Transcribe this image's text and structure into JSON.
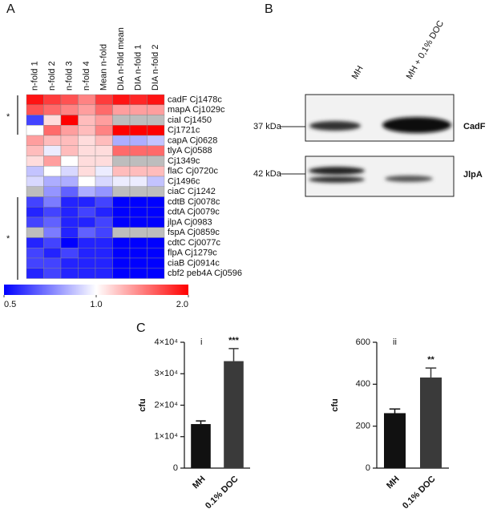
{
  "panel_labels": [
    "A",
    "B",
    "C"
  ],
  "blot": {
    "lanes": [
      "MH",
      "MH + 0,1% DOC"
    ],
    "markers": [
      "37 kDa",
      "42 kDa"
    ],
    "proteins": [
      "CadF",
      "JlpA"
    ]
  },
  "chart_data": [
    {
      "type": "heatmap",
      "columns": [
        "n-fold 1",
        "n-fold 2",
        "n-fold 3",
        "n-fold 4",
        "Mean n-fold",
        "DIA n-fold mean",
        "DIA n-fold 1",
        "DIA n-fold 2"
      ],
      "rows": [
        "cadF Cj1478c",
        "mapA Cj1029c",
        "ciaI Cj1450",
        "Cj1721c",
        "capA Cj0628",
        "tlyA Cj0588",
        "Cj1349c",
        "flaC Cj0720c",
        "Cj1496c",
        "ciaC Cj1242",
        "cdtB Cj0078c",
        "cdtA Cj0079c",
        "jlpA Cj0983",
        "fspA Cj0859c",
        "cdtC Cj0077c",
        "flpA Cj1279c",
        "ciaB Cj0914c",
        "cbf2 peb4A Cj0596"
      ],
      "values": [
        [
          1.9,
          1.7,
          1.6,
          1.4,
          1.7,
          1.9,
          1.8,
          1.9
        ],
        [
          1.6,
          1.5,
          1.4,
          1.3,
          1.5,
          1.3,
          1.3,
          1.3
        ],
        [
          0.6,
          1.1,
          2.0,
          1.2,
          1.3,
          null,
          null,
          null
        ],
        [
          1.0,
          1.5,
          1.3,
          1.2,
          1.4,
          2.0,
          2.0,
          2.0
        ],
        [
          1.3,
          1.2,
          1.2,
          1.1,
          1.2,
          0.8,
          0.8,
          0.85
        ],
        [
          1.2,
          0.95,
          1.2,
          1.1,
          1.1,
          1.5,
          1.5,
          1.5
        ],
        [
          1.1,
          1.3,
          1.0,
          1.1,
          1.1,
          null,
          null,
          null
        ],
        [
          0.85,
          1.0,
          0.9,
          1.1,
          0.95,
          1.2,
          1.2,
          1.2
        ],
        [
          0.9,
          0.8,
          0.8,
          1.0,
          0.9,
          0.95,
          0.95,
          0.85
        ],
        [
          null,
          0.75,
          0.65,
          0.8,
          0.75,
          null,
          null,
          null
        ],
        [
          0.6,
          0.7,
          0.55,
          0.55,
          0.6,
          0.5,
          0.5,
          0.5
        ],
        [
          0.55,
          0.6,
          0.55,
          0.6,
          0.55,
          0.5,
          0.5,
          0.5
        ],
        [
          0.6,
          0.65,
          0.55,
          0.55,
          0.6,
          0.5,
          0.5,
          0.5
        ],
        [
          null,
          0.7,
          0.55,
          0.65,
          0.6,
          null,
          null,
          null
        ],
        [
          0.55,
          0.6,
          0.5,
          0.55,
          0.55,
          0.5,
          0.5,
          0.5
        ],
        [
          0.6,
          0.55,
          0.6,
          0.55,
          0.55,
          0.5,
          0.5,
          0.5
        ],
        [
          0.6,
          0.6,
          0.55,
          0.55,
          0.55,
          0.5,
          0.5,
          0.5
        ],
        [
          0.55,
          0.6,
          0.55,
          0.55,
          0.55,
          0.5,
          0.5,
          0.5
        ]
      ],
      "clim": [
        0.5,
        2
      ],
      "log_scale": true,
      "colors": [
        "#0000ff",
        "#ffffff",
        "#ff0000"
      ],
      "missing_color": "#bdbdbd",
      "colorbar_ticks": [
        0.5,
        {
          "value": 1,
          "label": "1.0"
        },
        {
          "value": 2,
          "label": "2.0"
        }
      ],
      "annotations": [
        "*",
        "*"
      ]
    },
    {
      "type": "bar",
      "subtitle": "i",
      "y_label": "cfu",
      "categories": [
        "MH",
        "0.1% DOC"
      ],
      "values": [
        14000,
        34000
      ],
      "errors": [
        1000,
        4000
      ],
      "colors": [
        "#111111",
        "#3a3a3a"
      ],
      "significance": [
        null,
        "***"
      ],
      "ylim": [
        0,
        40000
      ],
      "yticks": [
        0,
        {
          "value": 10000,
          "label": "1×10⁴"
        },
        {
          "value": 20000,
          "label": "2×10⁴"
        },
        {
          "value": 30000,
          "label": "3×10⁴"
        },
        {
          "value": 40000,
          "label": "4×10⁴"
        }
      ]
    },
    {
      "type": "bar",
      "subtitle": "ii",
      "y_label": "cfu",
      "categories": [
        "MH",
        "0.1% DOC"
      ],
      "values": [
        262,
        432
      ],
      "errors": [
        20,
        45
      ],
      "colors": [
        "#111111",
        "#3a3a3a"
      ],
      "significance": [
        null,
        "**"
      ],
      "ylim": [
        0,
        600
      ],
      "yticks": [
        0,
        200,
        400,
        600
      ]
    }
  ]
}
